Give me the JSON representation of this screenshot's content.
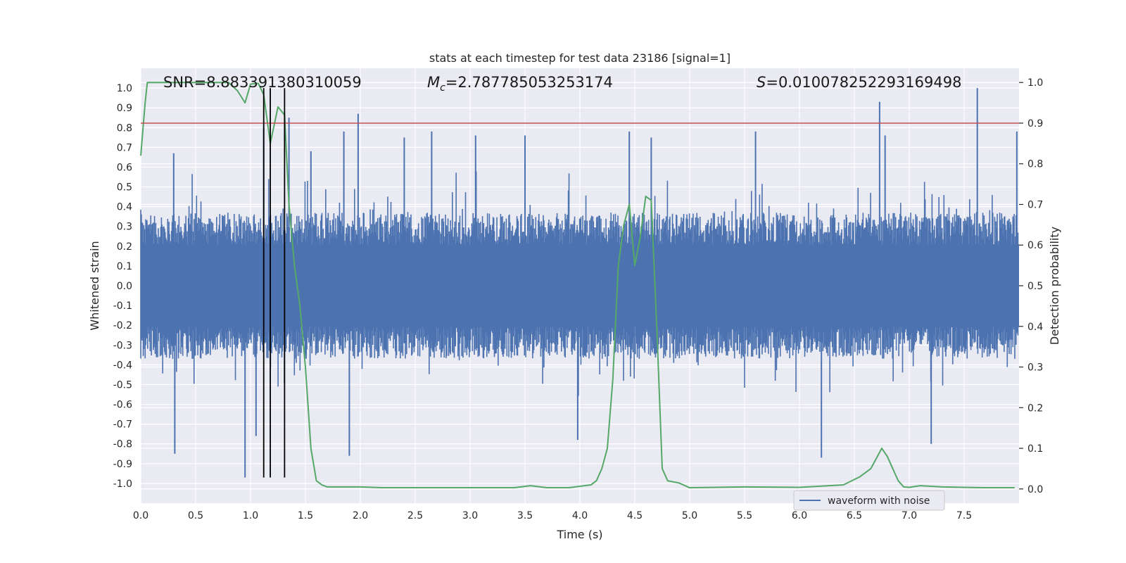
{
  "chart_data": {
    "type": "line",
    "title": "stats at each timestep for test data 23186 [signal=1]",
    "xlabel": "Time (s)",
    "ylabel_left": "Whitened strain",
    "ylabel_right": "Detection probability",
    "xlim": [
      0.0,
      8.0
    ],
    "ylim_left": [
      -1.1,
      1.1
    ],
    "ylim_right": [
      -0.035,
      1.035
    ],
    "x_ticks": [
      "0.0",
      "0.5",
      "1.0",
      "1.5",
      "2.0",
      "2.5",
      "3.0",
      "3.5",
      "4.0",
      "4.5",
      "5.0",
      "5.5",
      "6.0",
      "6.5",
      "7.0",
      "7.5"
    ],
    "left_ticks": [
      "1.0",
      "0.9",
      "0.8",
      "0.7",
      "0.6",
      "0.5",
      "0.4",
      "0.3",
      "0.2",
      "0.1",
      "0.0",
      "-0.1",
      "-0.2",
      "-0.3",
      "-0.4",
      "-0.5",
      "-0.6",
      "-0.7",
      "-0.8",
      "-0.9",
      "-1.0"
    ],
    "right_ticks": [
      "1.0",
      "0.9",
      "0.8",
      "0.7",
      "0.6",
      "0.5",
      "0.4",
      "0.3",
      "0.2",
      "0.1",
      "0.0"
    ],
    "grid": true,
    "annotations": {
      "snr": "SNR=8.883391380310059",
      "mc_symbol": "M",
      "mc_sub": "c",
      "mc_value": "=2.787785053253174",
      "s_symbol": "S",
      "s_value": "=0.010078252293169498"
    },
    "threshold_right": 0.9,
    "threshold_color": "#c44e52",
    "vlines_x": [
      1.12,
      1.18,
      1.31
    ],
    "vline_color": "#000000",
    "series": [
      {
        "name": "waveform with noise",
        "axis": "left",
        "color": "#4c72b0",
        "envelope_typical": 0.37,
        "peaks": [
          {
            "x": 0.3,
            "y": 0.67
          },
          {
            "x": 0.31,
            "y": -0.85
          },
          {
            "x": 0.95,
            "y": -0.97
          },
          {
            "x": 1.05,
            "y": -0.76
          },
          {
            "x": 1.12,
            "y": 0.8
          },
          {
            "x": 1.35,
            "y": 0.85
          },
          {
            "x": 1.55,
            "y": 0.68
          },
          {
            "x": 1.85,
            "y": 0.78
          },
          {
            "x": 1.9,
            "y": -0.86
          },
          {
            "x": 1.98,
            "y": 0.87
          },
          {
            "x": 2.4,
            "y": 0.75
          },
          {
            "x": 2.65,
            "y": 0.78
          },
          {
            "x": 3.05,
            "y": 0.76
          },
          {
            "x": 3.5,
            "y": 0.76
          },
          {
            "x": 3.98,
            "y": -0.78
          },
          {
            "x": 4.45,
            "y": 0.78
          },
          {
            "x": 4.65,
            "y": 0.75
          },
          {
            "x": 5.6,
            "y": 0.78
          },
          {
            "x": 6.2,
            "y": -0.87
          },
          {
            "x": 6.73,
            "y": 0.93
          },
          {
            "x": 6.78,
            "y": 0.76
          },
          {
            "x": 7.2,
            "y": -0.8
          },
          {
            "x": 7.62,
            "y": 1.0
          },
          {
            "x": 7.98,
            "y": 0.78
          }
        ]
      },
      {
        "name": "detection probability",
        "axis": "right",
        "color": "#55a868",
        "x": [
          0.0,
          0.04,
          0.06,
          0.12,
          0.3,
          0.5,
          0.7,
          0.8,
          0.88,
          0.95,
          1.0,
          1.07,
          1.12,
          1.18,
          1.25,
          1.31,
          1.35,
          1.4,
          1.45,
          1.5,
          1.55,
          1.6,
          1.65,
          1.7,
          1.9,
          2.0,
          2.2,
          2.5,
          3.0,
          3.4,
          3.55,
          3.7,
          3.9,
          4.1,
          4.15,
          4.2,
          4.25,
          4.3,
          4.35,
          4.4,
          4.45,
          4.5,
          4.55,
          4.6,
          4.65,
          4.7,
          4.75,
          4.8,
          4.9,
          5.0,
          5.5,
          6.0,
          6.4,
          6.55,
          6.65,
          6.75,
          6.8,
          6.85,
          6.9,
          6.95,
          7.0,
          7.1,
          7.3,
          7.5,
          7.7,
          7.96
        ],
        "y": [
          0.82,
          0.95,
          1.0,
          1.0,
          1.0,
          1.0,
          1.0,
          1.0,
          0.98,
          0.95,
          0.996,
          0.998,
          0.97,
          0.85,
          0.94,
          0.92,
          0.7,
          0.55,
          0.45,
          0.3,
          0.1,
          0.02,
          0.01,
          0.005,
          0.005,
          0.005,
          0.003,
          0.003,
          0.003,
          0.003,
          0.008,
          0.003,
          0.003,
          0.01,
          0.02,
          0.05,
          0.1,
          0.27,
          0.55,
          0.65,
          0.7,
          0.55,
          0.62,
          0.72,
          0.71,
          0.4,
          0.05,
          0.02,
          0.015,
          0.003,
          0.005,
          0.004,
          0.01,
          0.03,
          0.05,
          0.1,
          0.08,
          0.05,
          0.02,
          0.005,
          0.004,
          0.008,
          0.005,
          0.004,
          0.003,
          0.003
        ]
      }
    ],
    "legend": {
      "location": "lower-right",
      "entries": [
        {
          "label": "waveform with noise",
          "color": "#4c72b0"
        }
      ]
    }
  }
}
